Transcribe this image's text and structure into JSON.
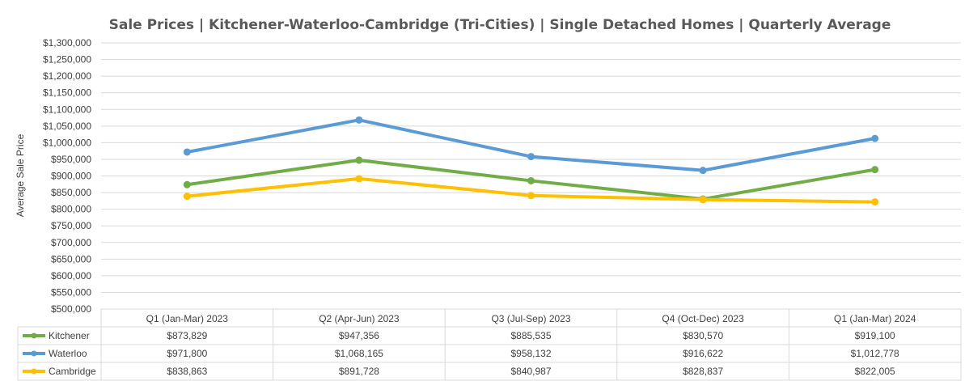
{
  "chart_data": {
    "type": "line",
    "title": "Sale Prices | Kitchener-Waterloo-Cambridge (Tri-Cities) | Single Detached Homes | Quarterly Average",
    "xlabel": "",
    "ylabel": "Average Sale Price",
    "ylim": [
      500000,
      1300000
    ],
    "ytick_step": 50000,
    "grid": true,
    "legend": "data-table-left",
    "categories": [
      "Q1 (Jan-Mar) 2023",
      "Q2 (Apr-Jun) 2023",
      "Q3 (Jul-Sep) 2023",
      "Q4 (Oct-Dec) 2023",
      "Q1 (Jan-Mar) 2024"
    ],
    "ytick_labels": [
      "$500,000",
      "$550,000",
      "$600,000",
      "$650,000",
      "$700,000",
      "$750,000",
      "$800,000",
      "$850,000",
      "$900,000",
      "$950,000",
      "$1,000,000",
      "$1,050,000",
      "$1,100,000",
      "$1,150,000",
      "$1,200,000",
      "$1,250,000",
      "$1,300,000"
    ],
    "series": [
      {
        "name": "Kitchener",
        "color": "#70ad47",
        "values": [
          873829,
          947356,
          885535,
          830570,
          919100
        ],
        "labels": [
          "$873,829",
          "$947,356",
          "$885,535",
          "$830,570",
          "$919,100"
        ]
      },
      {
        "name": "Waterloo",
        "color": "#5b9bd5",
        "values": [
          971800,
          1068165,
          958132,
          916622,
          1012778
        ],
        "labels": [
          "$971,800",
          "$1,068,165",
          "$958,132",
          "$916,622",
          "$1,012,778"
        ]
      },
      {
        "name": "Cambridge",
        "color": "#ffc000",
        "values": [
          838863,
          891728,
          840987,
          828837,
          822005
        ],
        "labels": [
          "$838,863",
          "$891,728",
          "$840,987",
          "$828,837",
          "$822,005"
        ]
      }
    ]
  }
}
